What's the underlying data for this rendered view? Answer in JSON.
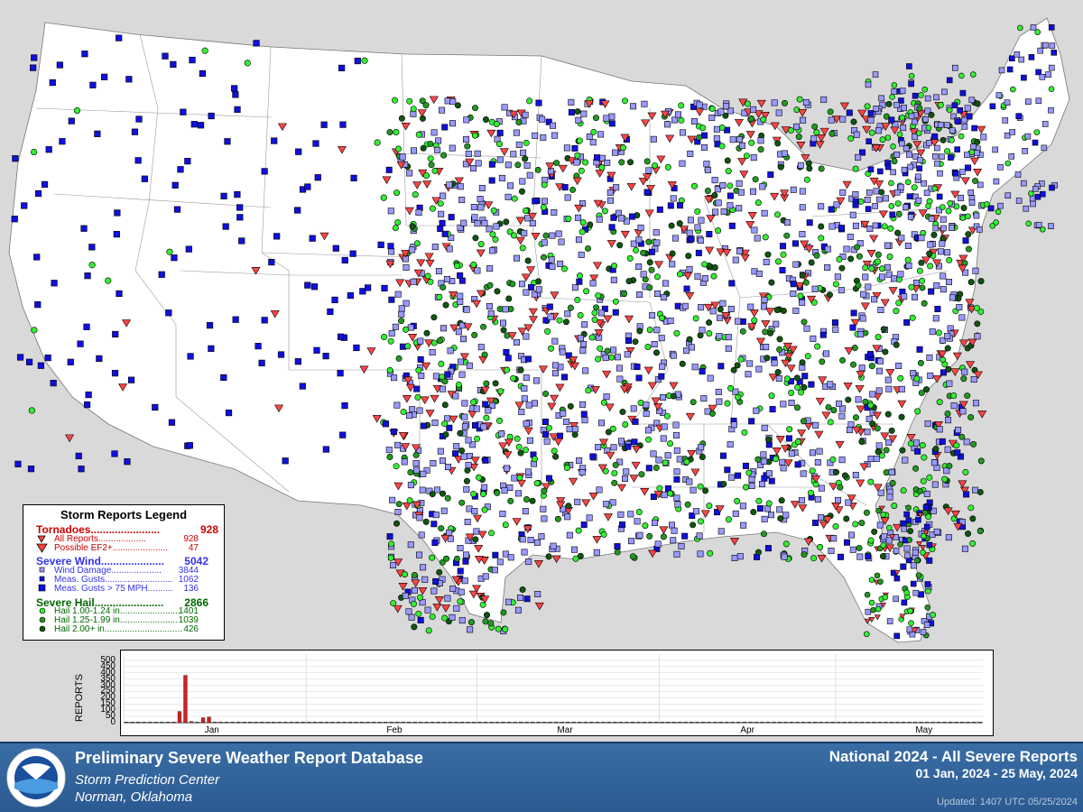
{
  "legend": {
    "title": "Storm Reports Legend",
    "tornadoes": {
      "label": "Tornadoes.......................",
      "total": "928",
      "rows": [
        {
          "label": "All Reports...................",
          "value": "928"
        },
        {
          "label": "Possible EF2+......................",
          "value": "47"
        }
      ]
    },
    "wind": {
      "label": "Severe Wind.....................",
      "total": "5042",
      "rows": [
        {
          "label": "Wind Damage....................",
          "value": "3844"
        },
        {
          "label": "Meas. Gusts...........................",
          "value": "1062"
        },
        {
          "label": "Meas. Gusts > 75 MPH..........",
          "value": "136"
        }
      ]
    },
    "hail": {
      "label": "Severe Hail.......................",
      "total": "2866",
      "rows": [
        {
          "label": "Hail 1.00-1.24 in........................",
          "value": "1401"
        },
        {
          "label": "Hail 1.25-1.99 in.......................",
          "value": "1039"
        },
        {
          "label": "Hail 2.00+ in...............................",
          "value": "426"
        }
      ]
    }
  },
  "footer": {
    "db_title": "Preliminary Severe Weather Report Database",
    "org": "Storm Prediction Center",
    "location": "Norman, Oklahoma",
    "national": "National  2024 - All Severe Reports",
    "date_range": "01 Jan, 2024 - 25 May, 2024",
    "updated": "Updated: 1407 UTC 05/25/2024"
  },
  "colors": {
    "tornado": "#ff4444",
    "wind": "#1010dd",
    "wind_light": "#9999ff",
    "hail": "#33ee33",
    "hail_dark": "#116611",
    "bar": "#cc2222",
    "footer": "#2f6299"
  },
  "chart_data": {
    "type": "bar",
    "ylabel": "REPORTS",
    "yticks": [
      0,
      50,
      100,
      150,
      200,
      250,
      300,
      350,
      400,
      450,
      500
    ],
    "ylim": [
      0,
      550
    ],
    "month_labels": [
      "Jan",
      "Feb",
      "Mar",
      "Apr",
      "May"
    ],
    "month_start_days": [
      1,
      32,
      61,
      92,
      122
    ],
    "date_range_days": 146,
    "values": [
      0,
      0,
      0,
      2,
      0,
      0,
      0,
      0,
      5,
      90,
      380,
      10,
      0,
      40,
      45,
      0,
      0,
      0,
      0,
      0,
      0,
      0,
      0,
      0,
      0,
      0,
      0,
      0,
      0,
      0,
      0,
      0,
      0,
      0,
      0,
      0,
      0,
      0,
      0,
      0,
      0,
      0,
      0,
      0,
      0,
      0,
      0,
      0,
      0,
      0,
      0,
      0,
      0,
      0,
      0,
      0,
      0,
      0,
      0,
      0,
      0,
      0,
      0,
      0,
      0,
      0,
      0,
      0,
      0,
      0,
      0,
      0,
      0,
      0,
      0,
      0,
      0,
      0,
      0,
      0,
      0,
      0,
      0,
      0,
      0,
      0,
      0,
      0,
      0,
      0,
      0,
      0,
      0,
      0,
      0,
      0,
      0,
      0,
      0,
      0,
      0,
      0,
      0,
      0,
      0,
      0,
      0,
      0,
      0,
      0,
      0,
      0,
      0,
      0,
      0,
      0,
      0,
      0,
      0,
      0,
      0,
      0,
      0,
      0,
      0,
      0,
      0,
      0,
      0,
      0,
      0,
      0,
      0,
      0,
      0,
      0,
      0,
      0,
      0,
      0,
      0,
      0,
      0,
      0,
      0,
      0
    ]
  }
}
